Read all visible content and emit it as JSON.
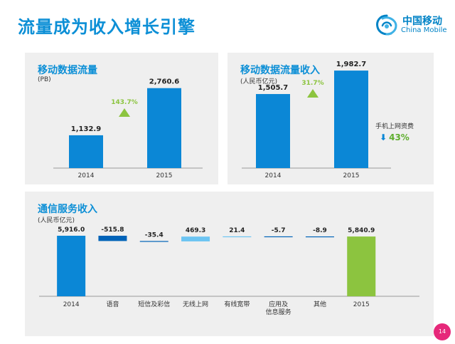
{
  "page": {
    "title": "流量成为收入增长引擎",
    "page_number": "14"
  },
  "logo": {
    "cn": "中国移动",
    "en": "China Mobile"
  },
  "colors": {
    "accent": "#0c8fd6",
    "bar_blue": "#0b87d6",
    "bar_dark_blue": "#0063b8",
    "bar_light_blue": "#6cc4f2",
    "bar_green": "#8cc43f",
    "growth_green": "#8cc43f",
    "panel_bg": "#efefef",
    "page_badge": "#e6287a"
  },
  "chart_data": [
    {
      "id": "traffic",
      "type": "bar",
      "title": "移动数据流量",
      "unit": "(PB)",
      "categories": [
        "2014",
        "2015"
      ],
      "values": [
        1132.9,
        2760.6
      ],
      "labels": [
        "1,132.9",
        "2,760.6"
      ],
      "growth": "143.7%",
      "ylim": [
        0,
        3000
      ]
    },
    {
      "id": "traffic_revenue",
      "type": "bar",
      "title": "移动数据流量收入",
      "unit": "(人民币亿元)",
      "categories": [
        "2014",
        "2015"
      ],
      "values": [
        1505.7,
        1982.7
      ],
      "labels": [
        "1,505.7",
        "1,982.7"
      ],
      "growth": "31.7%",
      "ylim": [
        0,
        2100
      ],
      "note": {
        "text": "手机上网资费",
        "value": "43%",
        "direction": "down"
      }
    },
    {
      "id": "telecom_revenue",
      "type": "waterfall",
      "title": "通信服务收入",
      "unit": "(人民币亿元)",
      "categories": [
        "2014",
        "语音",
        "短信及彩信",
        "无线上网",
        "有线宽带",
        "应用及\n信息服务",
        "其他",
        "2015"
      ],
      "values": [
        5916.0,
        -515.8,
        -35.4,
        469.3,
        21.4,
        -5.7,
        -8.9,
        5840.9
      ],
      "labels": [
        "5,916.0",
        "-515.8",
        "-35.4",
        "469.3",
        "21.4",
        "-5.7",
        "-8.9",
        "5,840.9"
      ],
      "kinds": [
        "total",
        "delta",
        "delta",
        "delta",
        "delta",
        "delta",
        "delta",
        "total"
      ]
    }
  ]
}
